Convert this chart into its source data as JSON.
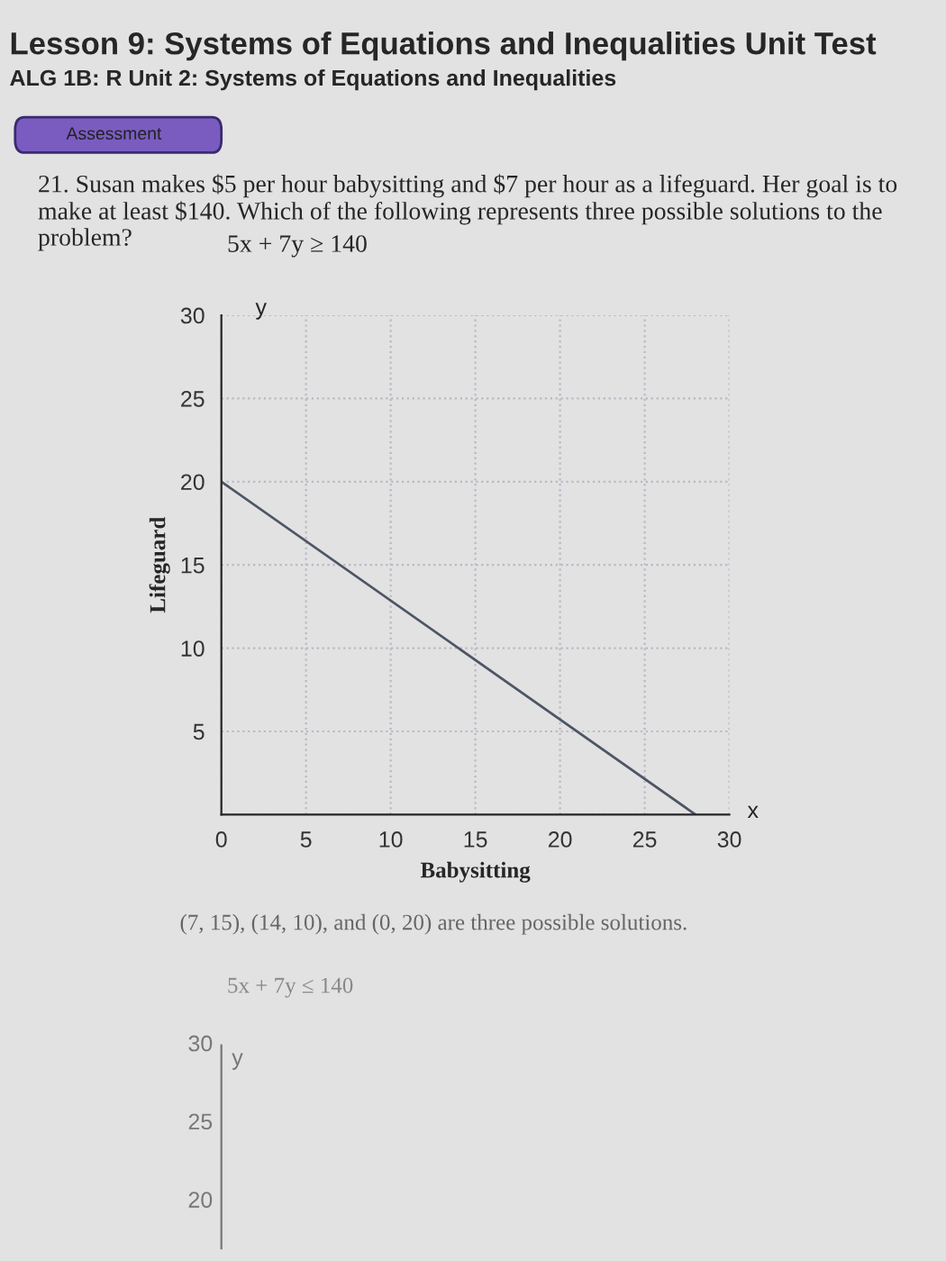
{
  "chart_data": [
    {
      "type": "line",
      "title": "Lesson 9: Systems of Equations and Inequalities Unit Test",
      "subtitle": "ALG 1B: R Unit 2: Systems of Equations and Inequalities",
      "xlabel": "Babysitting",
      "ylabel": "Lifeguard",
      "annotations": [
        "Assessment",
        "21. Susan makes $5 per hour babysitting and $7 per hour as a lifeguard. Her goal is to make at least $140. Which of the following represents three possible solutions to the problem?",
        "5x + 7y ≥ 140",
        "y",
        "x",
        "(7, 15), (14, 10), and (0, 20) are three possible solutions."
      ],
      "x": [
        0,
        28
      ],
      "series": [
        {
          "color": "#4d5566",
          "values": [
            20,
            0
          ]
        }
      ],
      "xlim": [
        0,
        30
      ],
      "ylim": [
        0,
        30
      ],
      "xticks": [
        0,
        5,
        10,
        15,
        20,
        25,
        30
      ],
      "yticks": [
        {
          "value": 0,
          "label": null
        },
        5,
        10,
        15,
        20,
        25,
        30
      ],
      "grid": true,
      "line_style": "solid",
      "marker": "none",
      "legend": false
    },
    {
      "type": "other",
      "title": "5x + 7y ≤ 140",
      "annotations": [
        "y",
        "30",
        "25",
        "20"
      ]
    }
  ]
}
